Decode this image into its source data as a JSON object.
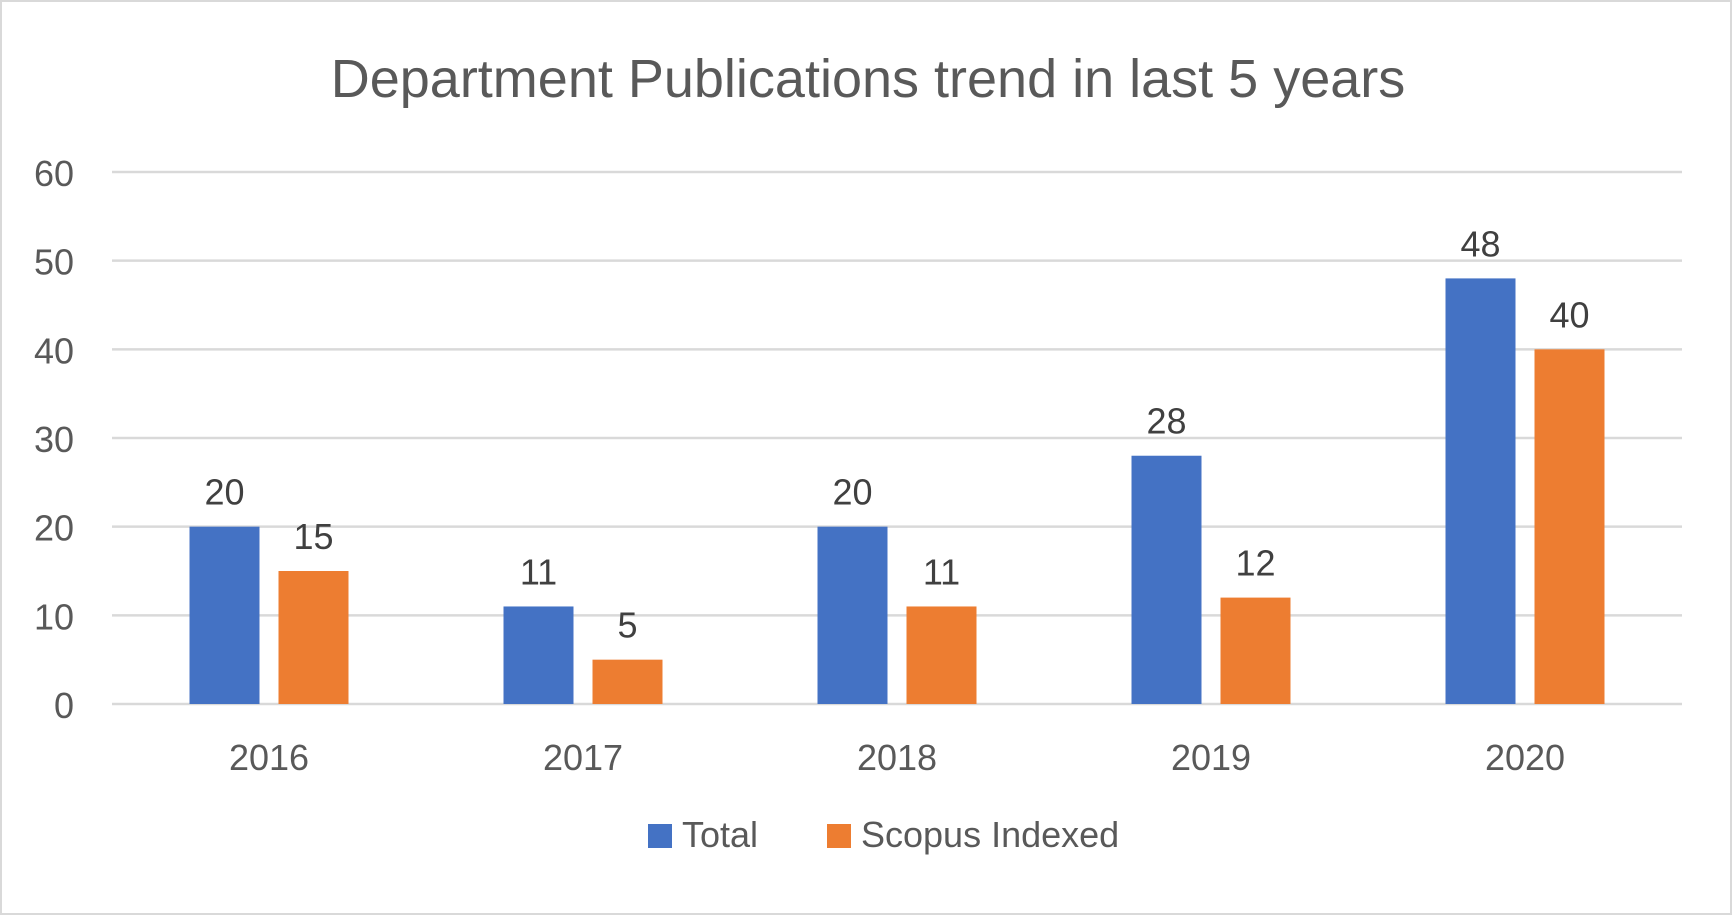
{
  "chart_data": {
    "type": "bar",
    "title": "Department Publications trend in last 5 years",
    "xlabel": "",
    "ylabel": "",
    "categories": [
      "2016",
      "2017",
      "2018",
      "2019",
      "2020"
    ],
    "series": [
      {
        "name": "Total",
        "values": [
          20,
          11,
          20,
          28,
          48
        ],
        "color": "#4472c4"
      },
      {
        "name": "Scopus Indexed",
        "values": [
          15,
          5,
          11,
          12,
          40
        ],
        "color": "#ed7d31"
      }
    ],
    "ylim": [
      0,
      60
    ],
    "yticks": [
      0,
      10,
      20,
      30,
      40,
      50,
      60
    ],
    "grid": true,
    "legend": "bottom-center",
    "data_labels": true
  }
}
